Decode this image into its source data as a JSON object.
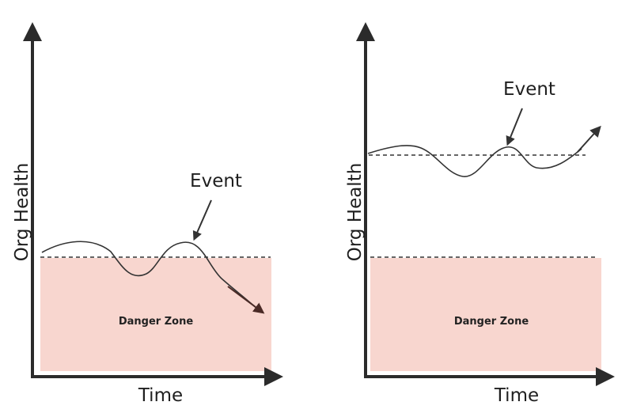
{
  "colors": {
    "axis": "#2b2b2b",
    "danger_zone_fill": "#f8d6cf",
    "curve": "#333333",
    "declining_arrow": "#4a2a26",
    "threshold_line": "#333333"
  },
  "panels": [
    {
      "y_axis_label": "Org Health",
      "x_axis_label": "Time",
      "danger_zone_label": "Danger Zone",
      "event_label": "Event",
      "outcome": "declines into danger zone"
    },
    {
      "y_axis_label": "Org Health",
      "x_axis_label": "Time",
      "danger_zone_label": "Danger Zone",
      "event_label": "Event",
      "outcome": "recovers and rises"
    }
  ],
  "icons": {
    "axis_arrow": "arrow-head-icon",
    "event_pointer": "pointer-arrow-icon"
  }
}
